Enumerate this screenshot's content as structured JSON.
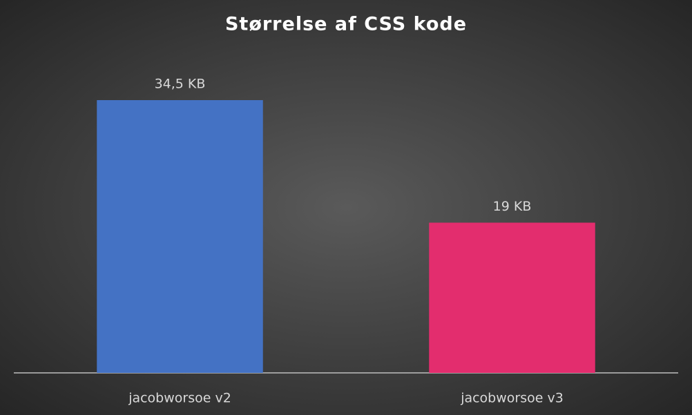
{
  "chart_data": {
    "type": "bar",
    "title": "Størrelse af CSS kode",
    "categories": [
      "jacobworsoe v2",
      "jacobworsoe v3"
    ],
    "values": [
      34.5,
      19
    ],
    "value_labels": [
      "34,5 KB",
      "19 KB"
    ],
    "colors": [
      "#4472c4",
      "#e32d6e"
    ]
  }
}
